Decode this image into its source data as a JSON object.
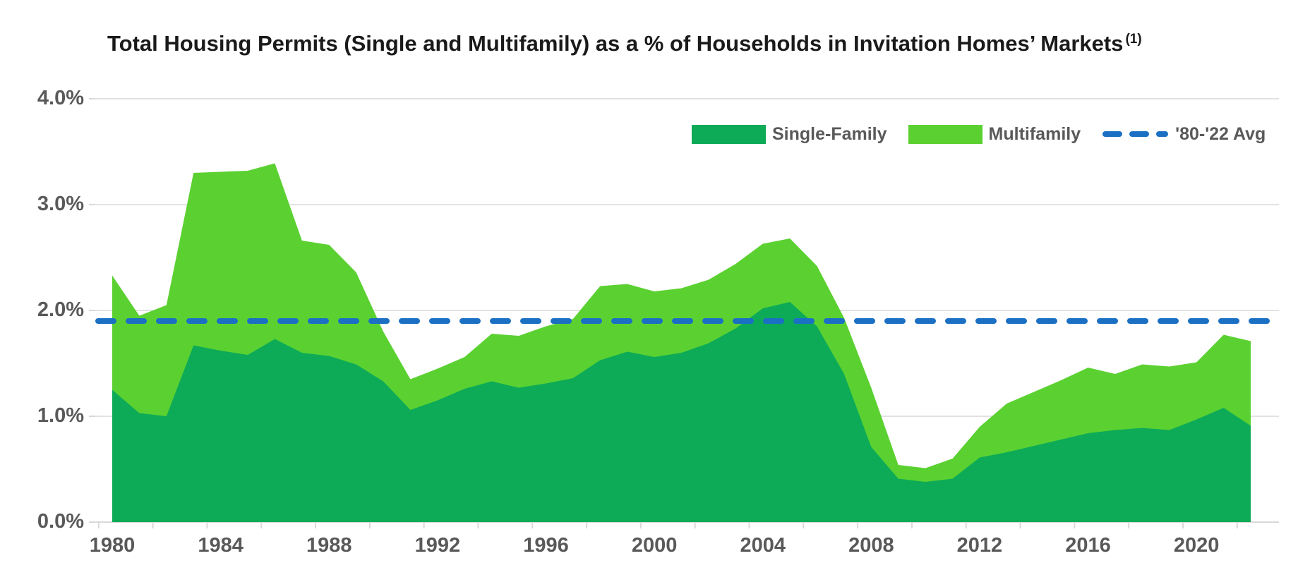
{
  "title": {
    "text": "Total Housing Permits (Single and Multifamily) as a % of Households in Invitation Homes’ Markets",
    "footnote_marker": "(1)"
  },
  "legend": [
    {
      "label": "Single-Family",
      "swatch": "filled-square",
      "color": "#0dab57"
    },
    {
      "label": "Multifamily",
      "swatch": "filled-square",
      "color": "#5bd131"
    },
    {
      "label": "'80-'22 Avg",
      "swatch": "dashed-line",
      "color": "#1b70c4"
    }
  ],
  "colors": {
    "single_family_fill": "#0dab57",
    "multifamily_fill": "#5bd131",
    "avg_line": "#1b70c4",
    "gridline": "#d9d9d9",
    "axis_text": "#595959",
    "title_text": "#1a1a1a",
    "background": "#ffffff"
  },
  "chart_data": {
    "type": "area",
    "stacked": true,
    "title": "Total Housing Permits (Single and Multifamily) as a % of Households in Invitation Homes’ Markets (1)",
    "x": [
      1980,
      1981,
      1982,
      1983,
      1984,
      1985,
      1986,
      1987,
      1988,
      1989,
      1990,
      1991,
      1992,
      1993,
      1994,
      1995,
      1996,
      1997,
      1998,
      1999,
      2000,
      2001,
      2002,
      2003,
      2004,
      2005,
      2006,
      2007,
      2008,
      2009,
      2010,
      2011,
      2012,
      2013,
      2014,
      2015,
      2016,
      2017,
      2018,
      2019,
      2020,
      2021,
      2022
    ],
    "series": [
      {
        "name": "Single-Family",
        "color": "#0dab57",
        "values": [
          1.25,
          1.03,
          1.0,
          1.67,
          1.62,
          1.58,
          1.73,
          1.6,
          1.57,
          1.49,
          1.33,
          1.06,
          1.15,
          1.26,
          1.33,
          1.27,
          1.31,
          1.36,
          1.53,
          1.61,
          1.56,
          1.6,
          1.69,
          1.83,
          2.02,
          2.08,
          1.85,
          1.4,
          0.71,
          0.41,
          0.38,
          0.41,
          0.61,
          0.66,
          0.72,
          0.78,
          0.84,
          0.87,
          0.89,
          0.87,
          0.97,
          1.08,
          0.91
        ]
      },
      {
        "name": "Multifamily",
        "color": "#5bd131",
        "values": [
          1.08,
          0.92,
          1.05,
          1.63,
          1.69,
          1.74,
          1.66,
          1.06,
          1.05,
          0.87,
          0.47,
          0.29,
          0.3,
          0.3,
          0.45,
          0.49,
          0.54,
          0.56,
          0.7,
          0.64,
          0.62,
          0.61,
          0.6,
          0.61,
          0.61,
          0.6,
          0.57,
          0.53,
          0.56,
          0.13,
          0.13,
          0.19,
          0.29,
          0.46,
          0.51,
          0.56,
          0.62,
          0.53,
          0.6,
          0.6,
          0.54,
          0.69,
          0.8
        ]
      }
    ],
    "avg_line": {
      "name": "'80-'22 Avg",
      "value": 1.9,
      "style": "dashed",
      "color": "#1b70c4"
    },
    "ylim": [
      0.0,
      4.0
    ],
    "y_tick_labels": [
      "0.0%",
      "1.0%",
      "2.0%",
      "3.0%",
      "4.0%"
    ],
    "y_tick_values": [
      0.0,
      1.0,
      2.0,
      3.0,
      4.0
    ],
    "x_tick_labels": [
      "1980",
      "1984",
      "1988",
      "1992",
      "1996",
      "2000",
      "2004",
      "2008",
      "2012",
      "2016",
      "2020"
    ],
    "x_tick_years": [
      1980,
      1984,
      1988,
      1992,
      1996,
      2000,
      2004,
      2008,
      2012,
      2016,
      2020
    ],
    "grid": "horizontal",
    "legend_position": "top-right"
  }
}
